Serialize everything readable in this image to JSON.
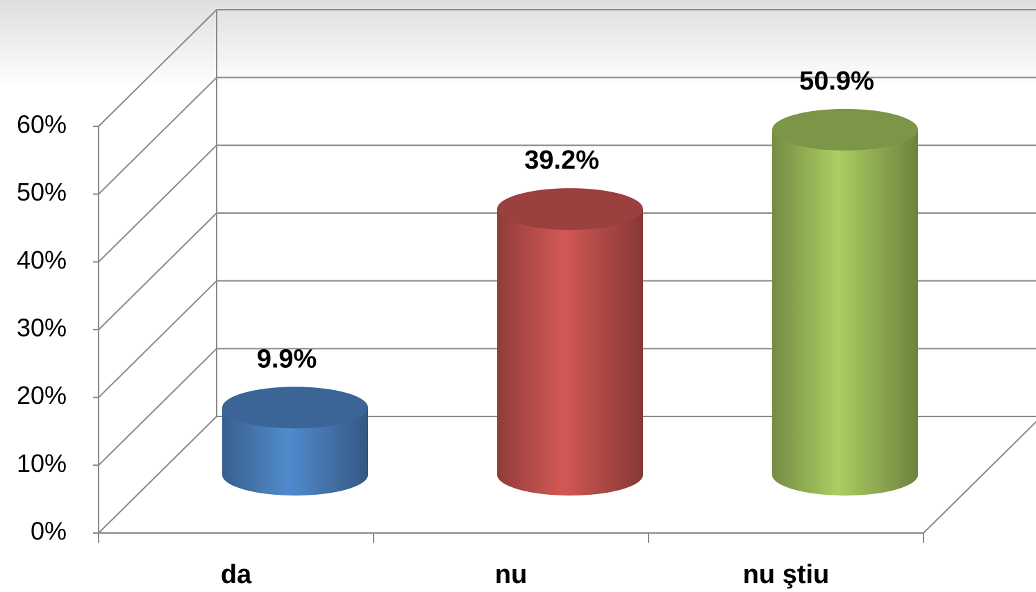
{
  "chart_data": {
    "type": "bar3d",
    "categories": [
      "da",
      "nu",
      "nu ştiu"
    ],
    "values": [
      9.9,
      39.2,
      50.9
    ],
    "value_labels": [
      "9.9%",
      "39.2%",
      "50.9%"
    ],
    "colors": [
      "#4a7ebb",
      "#c0504d",
      "#9bbb59"
    ],
    "ylim": [
      0,
      60
    ],
    "yticks": [
      {
        "value": 0,
        "label": "0%"
      },
      {
        "value": 10,
        "label": "10%"
      },
      {
        "value": 20,
        "label": "20%"
      },
      {
        "value": 30,
        "label": "30%"
      },
      {
        "value": 40,
        "label": "40%"
      },
      {
        "value": 50,
        "label": "50%"
      },
      {
        "value": 60,
        "label": "60%"
      }
    ],
    "grid": true
  }
}
